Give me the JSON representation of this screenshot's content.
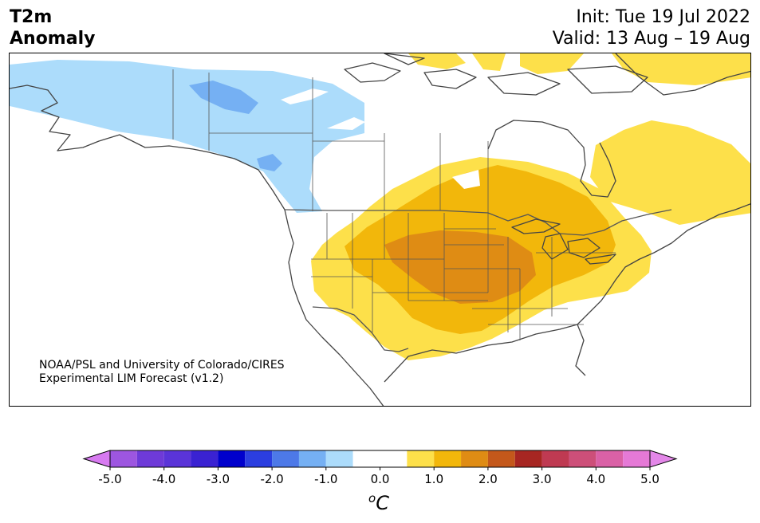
{
  "title": {
    "line1": "T2m",
    "line2": "Anomaly"
  },
  "run": {
    "init": "Init: Tue 19 Jul 2022",
    "valid": "Valid: 13 Aug – 19 Aug"
  },
  "credit": {
    "line1": "NOAA/PSL and University of Colorado/CIRES",
    "line2": "Experimental LIM Forecast (v1.2)"
  },
  "colorbar": {
    "unit_base": "C",
    "unit_sup": "o",
    "tick_labels": [
      "-5.0",
      "-4.0",
      "-3.0",
      "-2.0",
      "-1.0",
      "0.0",
      "1.0",
      "2.0",
      "3.0",
      "4.0",
      "5.0"
    ],
    "bins": [
      {
        "lo": -5.0,
        "hi": -4.5,
        "color": "#9d56e0"
      },
      {
        "lo": -4.5,
        "hi": -4.0,
        "color": "#6e3ad8"
      },
      {
        "lo": -4.0,
        "hi": -3.5,
        "color": "#5a34d8"
      },
      {
        "lo": -3.5,
        "hi": -3.0,
        "color": "#3a22d2"
      },
      {
        "lo": -3.0,
        "hi": -2.5,
        "color": "#0000cc"
      },
      {
        "lo": -2.5,
        "hi": -2.0,
        "color": "#2b3ee0"
      },
      {
        "lo": -2.0,
        "hi": -1.5,
        "color": "#4d79e8"
      },
      {
        "lo": -1.5,
        "hi": -1.0,
        "color": "#75b0f3"
      },
      {
        "lo": -1.0,
        "hi": -0.5,
        "color": "#acdcfb"
      },
      {
        "lo": -0.5,
        "hi": 0.5,
        "color": "#ffffff"
      },
      {
        "lo": 0.5,
        "hi": 1.0,
        "color": "#fde04a"
      },
      {
        "lo": 1.0,
        "hi": 1.5,
        "color": "#f2b70b"
      },
      {
        "lo": 1.5,
        "hi": 2.0,
        "color": "#df8c14"
      },
      {
        "lo": 2.0,
        "hi": 2.5,
        "color": "#c4581b"
      },
      {
        "lo": 2.5,
        "hi": 3.0,
        "color": "#a72622"
      },
      {
        "lo": 3.0,
        "hi": 3.5,
        "color": "#bf3a52"
      },
      {
        "lo": 3.5,
        "hi": 4.0,
        "color": "#cd4f79"
      },
      {
        "lo": 4.0,
        "hi": 4.5,
        "color": "#da61a6"
      },
      {
        "lo": 4.5,
        "hi": 5.0,
        "color": "#e579d6"
      }
    ],
    "under_color": "#d77af0",
    "over_color": "#e387e8"
  },
  "map_colors": {
    "land_outline": "#444444",
    "state_lines": "#555555",
    "light_blue": "#acdcfb",
    "mid_blue": "#75b0f3",
    "yellow": "#fde04a",
    "gold": "#f2b70b",
    "orange": "#df8c14",
    "lake": "#ffffff"
  }
}
